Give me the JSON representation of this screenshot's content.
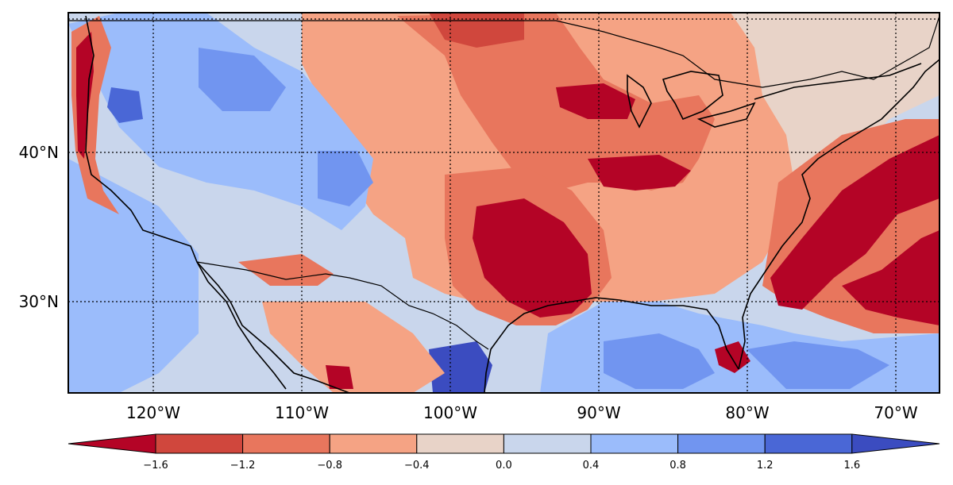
{
  "map": {
    "type": "filled-contour-anomaly-map",
    "region": "Contiguous United States",
    "lon_ticks": [
      "120°W",
      "110°W",
      "100°W",
      "90°W",
      "80°W",
      "70°W"
    ],
    "lat_ticks": [
      "40°N",
      "30°N"
    ],
    "lon_range": [
      -125.7,
      -67.2
    ],
    "lat_range": [
      24.1,
      49.6
    ],
    "gridlines": "dotted"
  },
  "colorbar": {
    "levels": [
      "−1.6",
      "−1.2",
      "−0.8",
      "−0.4",
      "0.0",
      "0.4",
      "0.8",
      "1.2",
      "1.6"
    ],
    "level_values": [
      -1.6,
      -1.2,
      -0.8,
      -0.4,
      0.0,
      0.4,
      0.8,
      1.2,
      1.6
    ],
    "colors": [
      "#b40426",
      "#d0473d",
      "#e8765d",
      "#f5a384",
      "#e8d3c8",
      "#c9d6ec",
      "#9bbcfb",
      "#7195f0",
      "#4a67d6",
      "#3b4cc0"
    ],
    "extend": "both",
    "orientation": "horizontal"
  },
  "legend_colors": {
    "land_base": "#c9d6ec",
    "coastline": "#000000"
  }
}
